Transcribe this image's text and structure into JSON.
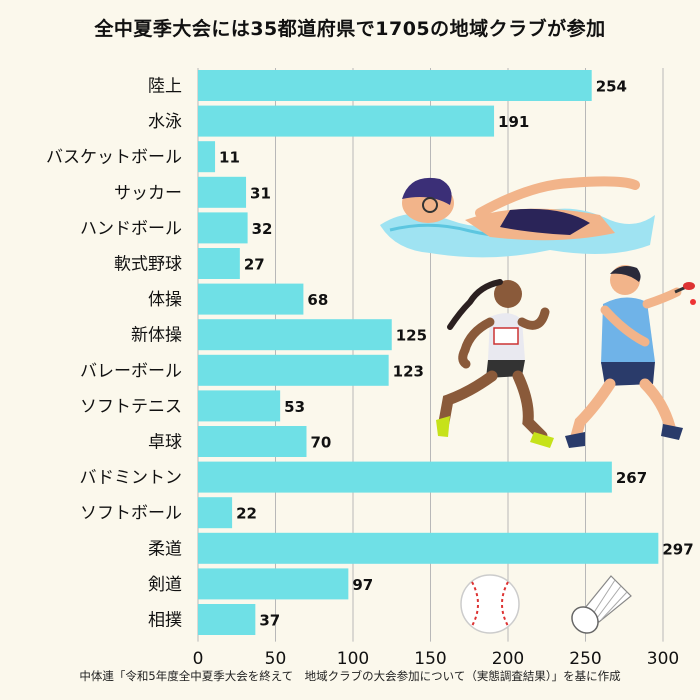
{
  "title": "全中夏季大会には35都道府県で1705の地域クラブが参加",
  "source": "中体連「令和5年度全中夏季大会を終えて　地域クラブの大会参加について（実態調査結果）」を基に作成",
  "colors": {
    "bar": "#6fe0e6",
    "background": "#fbf8ec",
    "text": "#111111",
    "grid": "#b8b8b8"
  },
  "chart_data": {
    "type": "bar",
    "orientation": "horizontal",
    "title": "全中夏季大会には35都道府県で1705の地域クラブが参加",
    "categories": [
      "陸上",
      "水泳",
      "バスケットボール",
      "サッカー",
      "ハンドボール",
      "軟式野球",
      "体操",
      "新体操",
      "バレーボール",
      "ソフトテニス",
      "卓球",
      "バドミントン",
      "ソフトボール",
      "柔道",
      "剣道",
      "相撲"
    ],
    "values": [
      254,
      191,
      11,
      31,
      32,
      27,
      68,
      125,
      123,
      53,
      70,
      267,
      22,
      297,
      97,
      37
    ],
    "xlim": [
      0,
      300
    ],
    "xticks": [
      0,
      50,
      100,
      150,
      200,
      250,
      300
    ],
    "xlabel": "",
    "ylabel": "",
    "grid": true,
    "data_labels": true
  },
  "illustrations": [
    "swimmer-illustration",
    "runner-illustration",
    "table-tennis-player-illustration",
    "baseball-icon",
    "shuttlecock-icon"
  ]
}
